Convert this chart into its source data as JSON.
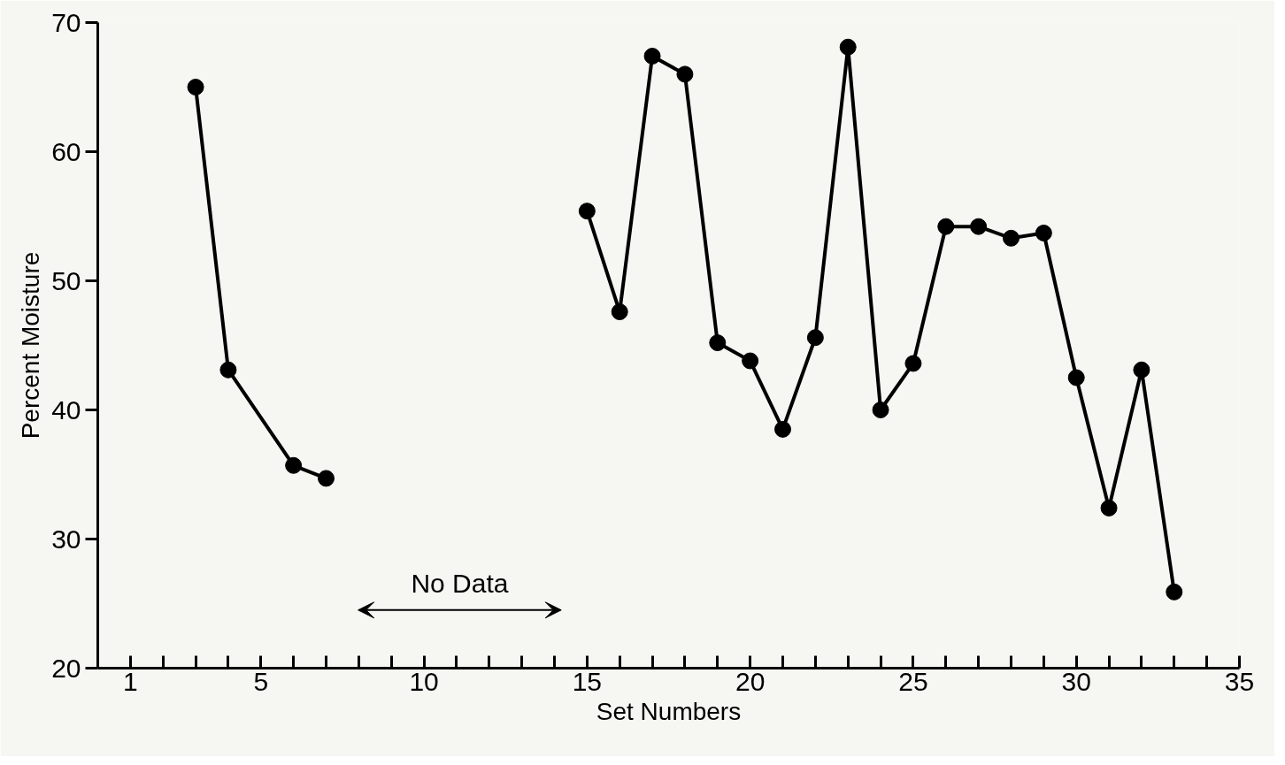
{
  "chart_data": {
    "type": "line",
    "xlabel": "Set Numbers",
    "ylabel": "Percent Moisture",
    "series": [
      {
        "color": "#000000",
        "x": [
          3,
          4,
          6,
          7
        ],
        "values": [
          65.0,
          43.1,
          35.7,
          34.7
        ]
      },
      {
        "color": "#000000",
        "x": [
          15,
          16,
          17,
          18,
          19,
          20,
          21,
          22,
          23,
          24,
          25,
          26,
          27,
          28,
          29,
          30,
          31,
          32,
          33
        ],
        "values": [
          55.4,
          47.6,
          67.4,
          66.0,
          45.2,
          43.8,
          38.5,
          45.6,
          68.1,
          40.0,
          43.6,
          54.2,
          54.2,
          53.3,
          53.7,
          42.5,
          32.4,
          43.1,
          25.9
        ]
      }
    ],
    "annotations": [
      "No Data"
    ],
    "xlim": [
      0,
      35
    ],
    "ylim": [
      20,
      70
    ],
    "xticks": [
      1,
      {
        "value": 2,
        "label": null
      },
      {
        "value": 3,
        "label": null
      },
      {
        "value": 4,
        "label": null
      },
      5,
      {
        "value": 6,
        "label": null
      },
      {
        "value": 7,
        "label": null
      },
      {
        "value": 8,
        "label": null
      },
      {
        "value": 9,
        "label": null
      },
      10,
      {
        "value": 11,
        "label": null
      },
      {
        "value": 12,
        "label": null
      },
      {
        "value": 13,
        "label": null
      },
      {
        "value": 14,
        "label": null
      },
      15,
      {
        "value": 16,
        "label": null
      },
      {
        "value": 17,
        "label": null
      },
      {
        "value": 18,
        "label": null
      },
      {
        "value": 19,
        "label": null
      },
      20,
      {
        "value": 21,
        "label": null
      },
      {
        "value": 22,
        "label": null
      },
      {
        "value": 23,
        "label": null
      },
      {
        "value": 24,
        "label": null
      },
      25,
      {
        "value": 26,
        "label": null
      },
      {
        "value": 27,
        "label": null
      },
      {
        "value": 28,
        "label": null
      },
      {
        "value": 29,
        "label": null
      },
      30,
      {
        "value": 31,
        "label": null
      },
      {
        "value": 32,
        "label": null
      },
      {
        "value": 33,
        "label": null
      },
      {
        "value": 34,
        "label": null
      },
      35
    ],
    "yticks": [
      20,
      30,
      40,
      50,
      60,
      70
    ],
    "marker": "circle",
    "line_style": "solid",
    "grid": false
  }
}
